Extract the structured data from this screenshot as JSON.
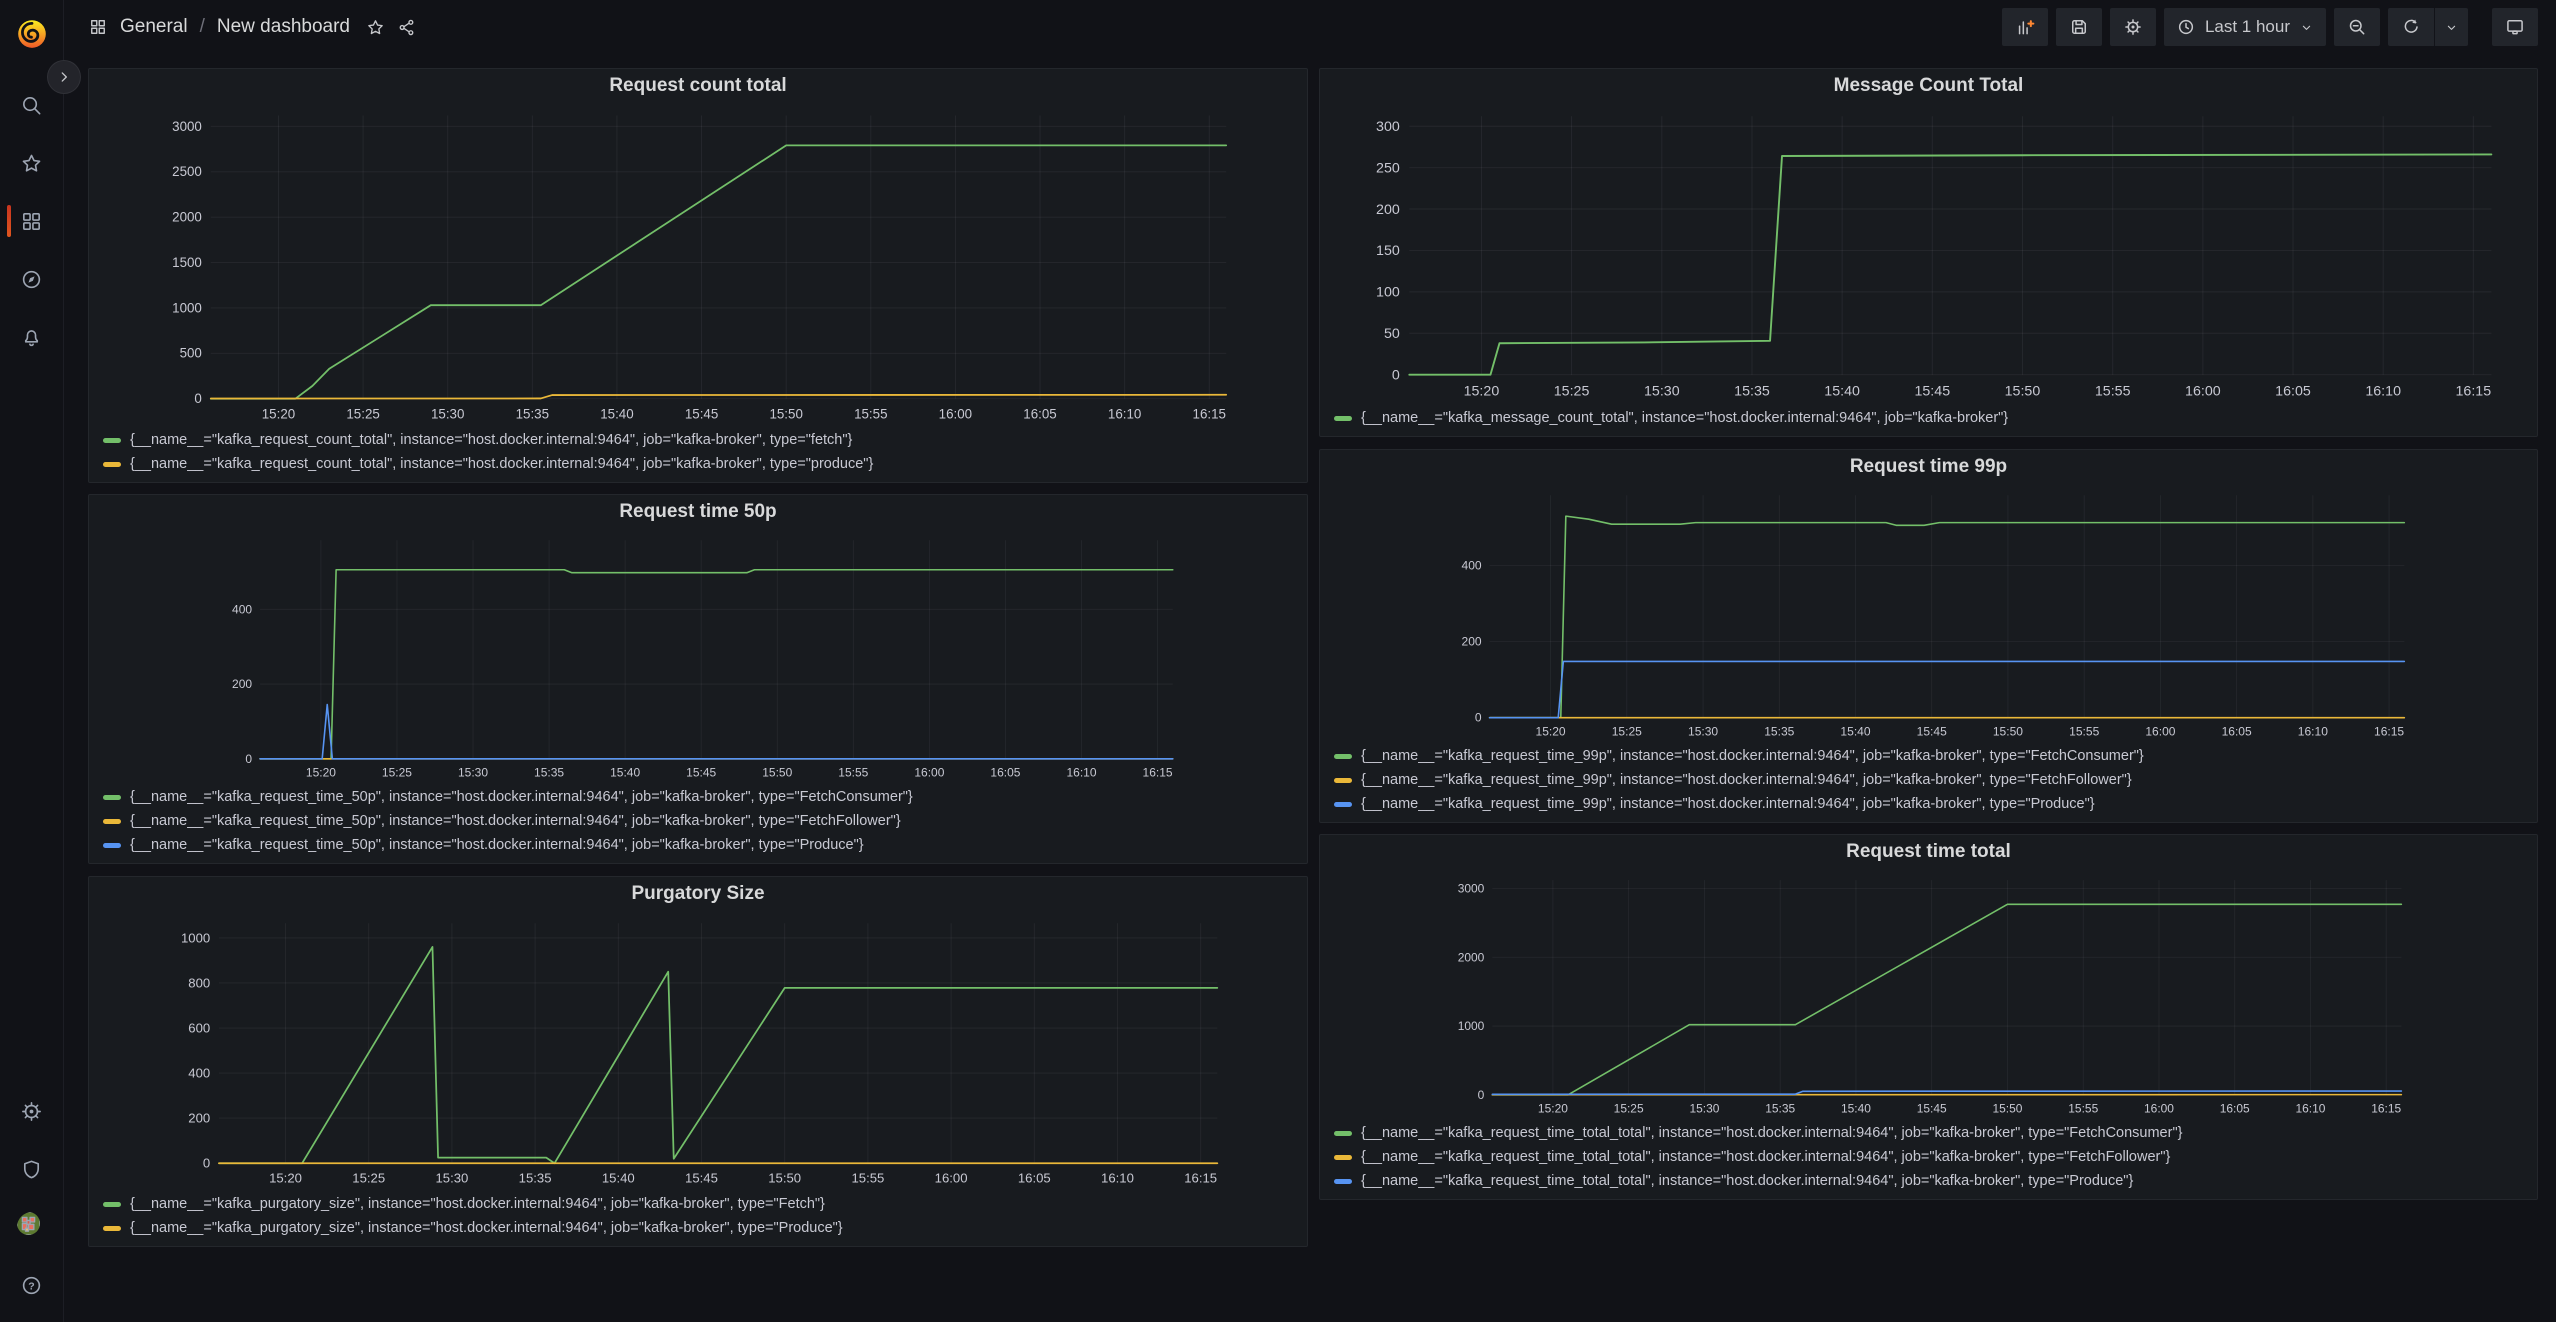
{
  "colors": {
    "green": "#73BF69",
    "yellow": "#EAB839",
    "blue": "#5794F2",
    "accent_orange": "#FF8833",
    "active_indicator": "#C9341F"
  },
  "sidebar": {
    "icons": [
      "grafana-logo",
      "expand-section",
      "search",
      "starred",
      "dashboards",
      "explore",
      "alerting",
      "configuration",
      "server-admin",
      "user-avatar",
      "help"
    ],
    "active_item": "dashboards"
  },
  "header": {
    "breadcrumb": {
      "icon": "apps-grid",
      "section": "General",
      "separator": "/",
      "page": "New dashboard"
    },
    "actions": [
      "star",
      "share"
    ],
    "toolbar": {
      "icons": [
        "add-panel",
        "save-dashboard",
        "dashboard-settings",
        "time-picker",
        "zoom-out",
        "refresh",
        "refresh-interval",
        "cycle-view"
      ],
      "time_range_label": "Last 1 hour"
    }
  },
  "panels": [
    {
      "title": "Request count total",
      "legend": [
        "{__name__=\"kafka_request_count_total\", instance=\"host.docker.internal:9464\", job=\"kafka-broker\", type=\"fetch\"}",
        "{__name__=\"kafka_request_count_total\", instance=\"host.docker.internal:9464\", job=\"kafka-broker\", type=\"produce\"}"
      ],
      "chart": {
        "type": "line",
        "x_domain": [
          "15:16",
          "16:16"
        ],
        "x_ticks": [
          "15:20",
          "15:25",
          "15:30",
          "15:35",
          "15:40",
          "15:45",
          "15:50",
          "15:55",
          "16:00",
          "16:05",
          "16:10",
          "16:15"
        ],
        "y_domain": [
          0,
          3120
        ],
        "y_ticks": [
          0,
          500,
          1000,
          1500,
          2000,
          2500,
          3000
        ],
        "series": [
          {
            "name": "fetch",
            "color": "green",
            "points": [
              [
                "15:16",
                0
              ],
              [
                "15:21",
                0
              ],
              [
                "15:22",
                140
              ],
              [
                "15:23",
                330
              ],
              [
                "15:29",
                1030
              ],
              [
                "15:35:30",
                1030
              ],
              [
                "15:50",
                2790
              ],
              [
                "16:16",
                2790
              ]
            ]
          },
          {
            "name": "produce",
            "color": "yellow",
            "points": [
              [
                "15:16",
                2
              ],
              [
                "15:35:30",
                3
              ],
              [
                "15:36:10",
                40
              ],
              [
                "16:16",
                43
              ]
            ]
          }
        ]
      }
    },
    {
      "title": "Message Count Total",
      "legend": [
        "{__name__=\"kafka_message_count_total\", instance=\"host.docker.internal:9464\", job=\"kafka-broker\"}"
      ],
      "chart": {
        "type": "line",
        "x_domain": [
          "15:16",
          "16:16"
        ],
        "x_ticks": [
          "15:20",
          "15:25",
          "15:30",
          "15:35",
          "15:40",
          "15:45",
          "15:50",
          "15:55",
          "16:00",
          "16:05",
          "16:10",
          "16:15"
        ],
        "y_domain": [
          0,
          312
        ],
        "y_ticks": [
          0,
          50,
          100,
          150,
          200,
          250,
          300
        ],
        "series": [
          {
            "name": "message_count",
            "color": "green",
            "points": [
              [
                "15:16",
                0
              ],
              [
                "15:20:30",
                0
              ],
              [
                "15:21",
                38
              ],
              [
                "15:29",
                39
              ],
              [
                "15:36",
                41
              ],
              [
                "15:36:40",
                264
              ],
              [
                "15:50",
                265
              ],
              [
                "16:16",
                266
              ]
            ]
          }
        ]
      }
    },
    {
      "title": "Request time 50p",
      "legend": [
        "{__name__=\"kafka_request_time_50p\", instance=\"host.docker.internal:9464\", job=\"kafka-broker\", type=\"FetchConsumer\"}",
        "{__name__=\"kafka_request_time_50p\", instance=\"host.docker.internal:9464\", job=\"kafka-broker\", type=\"FetchFollower\"}",
        "{__name__=\"kafka_request_time_50p\", instance=\"host.docker.internal:9464\", job=\"kafka-broker\", type=\"Produce\"}"
      ],
      "chart": {
        "type": "line",
        "x_domain": [
          "15:16",
          "16:16"
        ],
        "x_ticks": [
          "15:20",
          "15:25",
          "15:30",
          "15:35",
          "15:40",
          "15:45",
          "15:50",
          "15:55",
          "16:00",
          "16:05",
          "16:10",
          "16:15"
        ],
        "y_domain": [
          0,
          585
        ],
        "y_ticks": [
          0,
          200,
          400
        ],
        "series": [
          {
            "name": "FetchConsumer",
            "color": "green",
            "points": [
              [
                "15:16",
                0
              ],
              [
                "15:20:40",
                0
              ],
              [
                "15:21",
                506
              ],
              [
                "15:36",
                506
              ],
              [
                "15:36:30",
                498
              ],
              [
                "15:48",
                498
              ],
              [
                "15:48:30",
                506
              ],
              [
                "16:16",
                506
              ]
            ]
          },
          {
            "name": "FetchFollower",
            "color": "yellow",
            "points": [
              [
                "15:16",
                0
              ],
              [
                "16:16",
                0
              ]
            ]
          },
          {
            "name": "Produce",
            "color": "blue",
            "points": [
              [
                "15:16",
                0
              ],
              [
                "15:20:05",
                0
              ],
              [
                "15:20:25",
                145
              ],
              [
                "15:20:45",
                0
              ],
              [
                "16:16",
                0
              ]
            ]
          }
        ]
      }
    },
    {
      "title": "Request time 99p",
      "legend": [
        "{__name__=\"kafka_request_time_99p\", instance=\"host.docker.internal:9464\", job=\"kafka-broker\", type=\"FetchConsumer\"}",
        "{__name__=\"kafka_request_time_99p\", instance=\"host.docker.internal:9464\", job=\"kafka-broker\", type=\"FetchFollower\"}",
        "{__name__=\"kafka_request_time_99p\", instance=\"host.docker.internal:9464\", job=\"kafka-broker\", type=\"Produce\"}"
      ],
      "chart": {
        "type": "line",
        "x_domain": [
          "15:16",
          "16:16"
        ],
        "x_ticks": [
          "15:20",
          "15:25",
          "15:30",
          "15:35",
          "15:40",
          "15:45",
          "15:50",
          "15:55",
          "16:00",
          "16:05",
          "16:10",
          "16:15"
        ],
        "y_domain": [
          0,
          585
        ],
        "y_ticks": [
          0,
          200,
          400
        ],
        "series": [
          {
            "name": "FetchConsumer",
            "color": "green",
            "points": [
              [
                "15:16",
                0
              ],
              [
                "15:20:40",
                0
              ],
              [
                "15:21",
                530
              ],
              [
                "15:22:30",
                522
              ],
              [
                "15:24",
                509
              ],
              [
                "15:28:30",
                509
              ],
              [
                "15:29:30",
                513
              ],
              [
                "15:42",
                513
              ],
              [
                "15:42:40",
                506
              ],
              [
                "15:44:30",
                506
              ],
              [
                "15:45:30",
                513
              ],
              [
                "16:16",
                513
              ]
            ]
          },
          {
            "name": "FetchFollower",
            "color": "yellow",
            "points": [
              [
                "15:16",
                0
              ],
              [
                "16:16",
                0
              ]
            ]
          },
          {
            "name": "Produce",
            "color": "blue",
            "points": [
              [
                "15:16",
                0
              ],
              [
                "15:20:30",
                0
              ],
              [
                "15:20:50",
                148
              ],
              [
                "16:16",
                148
              ]
            ]
          }
        ]
      }
    },
    {
      "title": "Purgatory Size",
      "legend": [
        "{__name__=\"kafka_purgatory_size\", instance=\"host.docker.internal:9464\", job=\"kafka-broker\", type=\"Fetch\"}",
        "{__name__=\"kafka_purgatory_size\", instance=\"host.docker.internal:9464\", job=\"kafka-broker\", type=\"Produce\"}"
      ],
      "chart": {
        "type": "line",
        "x_domain": [
          "15:16",
          "16:16"
        ],
        "x_ticks": [
          "15:20",
          "15:25",
          "15:30",
          "15:35",
          "15:40",
          "15:45",
          "15:50",
          "15:55",
          "16:00",
          "16:05",
          "16:10",
          "16:15"
        ],
        "y_domain": [
          0,
          1065
        ],
        "y_ticks": [
          0,
          200,
          400,
          600,
          800,
          1000
        ],
        "series": [
          {
            "name": "Fetch",
            "color": "green",
            "points": [
              [
                "15:16",
                0
              ],
              [
                "15:21",
                0
              ],
              [
                "15:28:50",
                960
              ],
              [
                "15:29:10",
                25
              ],
              [
                "15:35:40",
                25
              ],
              [
                "15:36:10",
                0
              ],
              [
                "15:43",
                850
              ],
              [
                "15:43:20",
                20
              ],
              [
                "15:50",
                778
              ],
              [
                "16:16",
                778
              ]
            ]
          },
          {
            "name": "Produce",
            "color": "yellow",
            "points": [
              [
                "15:16",
                0
              ],
              [
                "16:16",
                0
              ]
            ]
          }
        ]
      }
    },
    {
      "title": "Request time total",
      "legend": [
        "{__name__=\"kafka_request_time_total_total\", instance=\"host.docker.internal:9464\", job=\"kafka-broker\", type=\"FetchConsumer\"}",
        "{__name__=\"kafka_request_time_total_total\", instance=\"host.docker.internal:9464\", job=\"kafka-broker\", type=\"FetchFollower\"}",
        "{__name__=\"kafka_request_time_total_total\", instance=\"host.docker.internal:9464\", job=\"kafka-broker\", type=\"Produce\"}"
      ],
      "chart": {
        "type": "line",
        "x_domain": [
          "15:16",
          "16:16"
        ],
        "x_ticks": [
          "15:20",
          "15:25",
          "15:30",
          "15:35",
          "15:40",
          "15:45",
          "15:50",
          "15:55",
          "16:00",
          "16:05",
          "16:10",
          "16:15"
        ],
        "y_domain": [
          0,
          3120
        ],
        "y_ticks": [
          0,
          1000,
          2000,
          3000
        ],
        "series": [
          {
            "name": "FetchConsumer",
            "color": "green",
            "points": [
              [
                "15:16",
                0
              ],
              [
                "15:21",
                0
              ],
              [
                "15:29",
                1020
              ],
              [
                "15:36",
                1020
              ],
              [
                "15:50",
                2770
              ],
              [
                "16:16",
                2770
              ]
            ]
          },
          {
            "name": "FetchFollower",
            "color": "yellow",
            "points": [
              [
                "15:16",
                2
              ],
              [
                "16:16",
                4
              ]
            ]
          },
          {
            "name": "Produce",
            "color": "blue",
            "points": [
              [
                "15:16",
                8
              ],
              [
                "15:36",
                10
              ],
              [
                "15:36:30",
                52
              ],
              [
                "16:16",
                56
              ]
            ]
          }
        ]
      }
    }
  ]
}
